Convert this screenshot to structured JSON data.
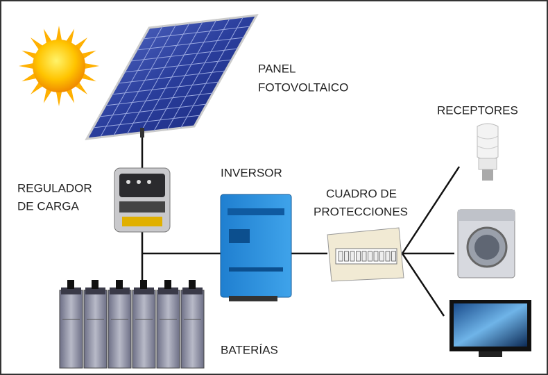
{
  "nodes": [
    {
      "label": [
        "PANEL",
        "FOTOVOLTAICO"
      ]
    },
    {
      "label": [
        "RECEPTORES"
      ]
    },
    {
      "label": [
        "REGULADOR",
        "DE CARGA"
      ]
    },
    {
      "label": [
        "INVERSOR"
      ]
    },
    {
      "label": [
        "CUADRO DE",
        "PROTECCIONES"
      ]
    },
    {
      "label": [
        "BATERÍAS"
      ]
    }
  ]
}
